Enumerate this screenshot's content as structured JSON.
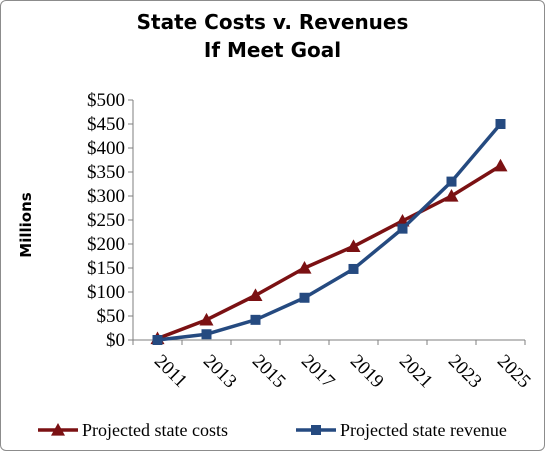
{
  "chart_data": {
    "type": "line",
    "title_line1": "State Costs v. Revenues",
    "title_line2": "If Meet Goal",
    "ylabel": "Millions",
    "xlabel": "",
    "categories": [
      "2011",
      "2013",
      "2015",
      "2017",
      "2019",
      "2021",
      "2023",
      "2025"
    ],
    "y_ticks": [
      "$0",
      "$50",
      "$100",
      "$150",
      "$200",
      "$250",
      "$300",
      "$350",
      "$400",
      "$450",
      "$500"
    ],
    "ylim": [
      0,
      500
    ],
    "grid": false,
    "legend_position": "bottom",
    "series": [
      {
        "name": "Projected state costs",
        "color": "#7b1113",
        "marker": "triangle",
        "values": [
          3,
          42,
          93,
          150,
          195,
          248,
          300,
          363
        ]
      },
      {
        "name": "Projected state revenue",
        "color": "#254a80",
        "marker": "square",
        "values": [
          0,
          12,
          42,
          88,
          148,
          232,
          330,
          450
        ]
      }
    ]
  }
}
